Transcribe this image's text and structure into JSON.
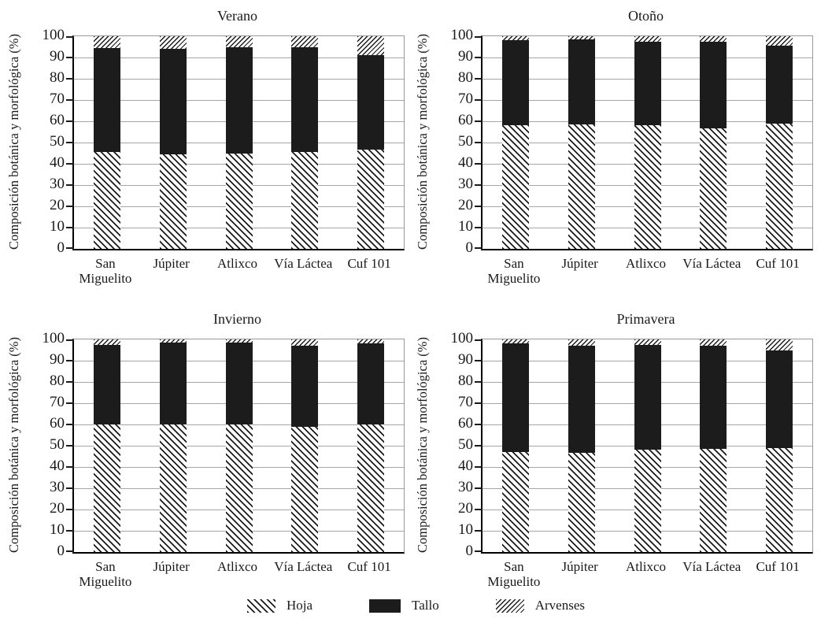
{
  "figure": {
    "colors": {
      "bar_fill": "#1c1c1c",
      "axis": "#000000",
      "grid": "#a6a6a6",
      "text": "#1a1a1a",
      "background": "#ffffff"
    },
    "legend": [
      {
        "label": "Hoja",
        "pattern": "hatch-backslash"
      },
      {
        "label": "Tallo",
        "pattern": "solid-black"
      },
      {
        "label": "Arvenses",
        "pattern": "hatch-forwardslash"
      }
    ]
  },
  "chart_data": [
    {
      "type": "bar",
      "stacked": true,
      "title": "Verano",
      "ylabel": "Composición botánica y morfológica (%)",
      "ylim": [
        0,
        100
      ],
      "ytick_step": 10,
      "grid": true,
      "legend_position": "bottom-shared",
      "categories": [
        "San Miguelito",
        "Júpiter",
        "Atlixco",
        "Vía Láctea",
        "Cuf 101"
      ],
      "series": [
        {
          "name": "Hoja",
          "values": [
            45.5,
            44.5,
            45,
            45.5,
            46.5
          ]
        },
        {
          "name": "Tallo",
          "values": [
            49,
            49.5,
            50,
            49.5,
            44.5
          ]
        },
        {
          "name": "Arvenses",
          "values": [
            5.5,
            6,
            5,
            5,
            9
          ]
        }
      ]
    },
    {
      "type": "bar",
      "stacked": true,
      "title": "Otoño",
      "ylabel": "Composición botánica y morfológica (%)",
      "ylim": [
        0,
        100
      ],
      "ytick_step": 10,
      "grid": true,
      "legend_position": "bottom-shared",
      "categories": [
        "San Miguelito",
        "Júpiter",
        "Atlixco",
        "Vía Láctea",
        "Cuf 101"
      ],
      "series": [
        {
          "name": "Hoja",
          "values": [
            58,
            58.5,
            58,
            56.5,
            59
          ]
        },
        {
          "name": "Tallo",
          "values": [
            40,
            40,
            39.5,
            41,
            36.5
          ]
        },
        {
          "name": "Arvenses",
          "values": [
            2,
            1.5,
            2.5,
            2.5,
            4.5
          ]
        }
      ]
    },
    {
      "type": "bar",
      "stacked": true,
      "title": "Invierno",
      "ylabel": "Composición botánica y morfológica (%)",
      "ylim": [
        0,
        100
      ],
      "ytick_step": 10,
      "grid": true,
      "legend_position": "bottom-shared",
      "categories": [
        "San Miguelito",
        "Júpiter",
        "Atlixco",
        "Vía Láctea",
        "Cuf 101"
      ],
      "series": [
        {
          "name": "Hoja",
          "values": [
            60,
            60,
            60,
            59,
            60
          ]
        },
        {
          "name": "Tallo",
          "values": [
            37.5,
            38.5,
            38.5,
            38,
            38
          ]
        },
        {
          "name": "Arvenses",
          "values": [
            2.5,
            1.5,
            1.5,
            3,
            2
          ]
        }
      ]
    },
    {
      "type": "bar",
      "stacked": true,
      "title": "Primavera",
      "ylabel": "Composición botánica y morfológica (%)",
      "ylim": [
        0,
        100
      ],
      "ytick_step": 10,
      "grid": true,
      "legend_position": "bottom-shared",
      "categories": [
        "San Miguelito",
        "Júpiter",
        "Atlixco",
        "Vía Láctea",
        "Cuf 101"
      ],
      "series": [
        {
          "name": "Hoja",
          "values": [
            47,
            46.5,
            48,
            48.5,
            49
          ]
        },
        {
          "name": "Tallo",
          "values": [
            51,
            50.5,
            49.5,
            48.5,
            46
          ]
        },
        {
          "name": "Arvenses",
          "values": [
            2,
            3,
            2.5,
            3,
            5
          ]
        }
      ]
    }
  ]
}
